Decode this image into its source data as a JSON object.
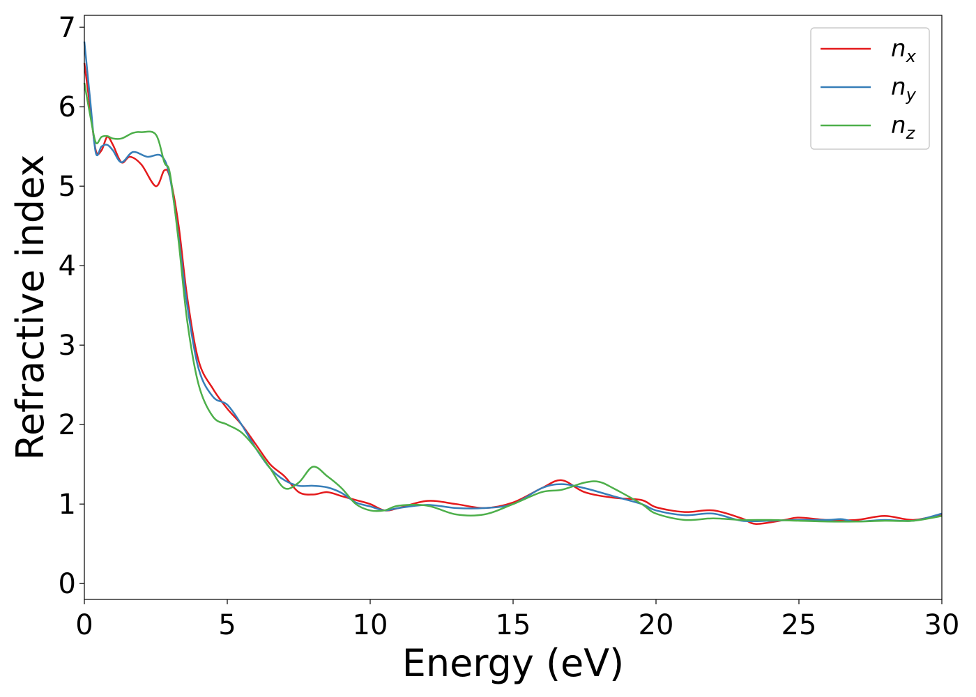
{
  "chart_data": {
    "type": "line",
    "title": "",
    "xlabel": "Energy (eV)",
    "ylabel": "Refractive index",
    "xlim": [
      0,
      30
    ],
    "ylim": [
      -0.2,
      7.15
    ],
    "xticks": [
      0,
      5,
      10,
      15,
      20,
      25,
      30
    ],
    "yticks": [
      0,
      1,
      2,
      3,
      4,
      5,
      6,
      7
    ],
    "grid": false,
    "legend_position": "top-right",
    "series": [
      {
        "name": "n",
        "subscript": "x",
        "color": "#e41a1c",
        "points": [
          [
            0,
            6.55
          ],
          [
            0.2,
            6.0
          ],
          [
            0.4,
            5.45
          ],
          [
            0.6,
            5.45
          ],
          [
            0.8,
            5.62
          ],
          [
            1.0,
            5.52
          ],
          [
            1.3,
            5.3
          ],
          [
            1.6,
            5.37
          ],
          [
            2.0,
            5.27
          ],
          [
            2.5,
            5.0
          ],
          [
            2.8,
            5.2
          ],
          [
            3.0,
            5.1
          ],
          [
            3.3,
            4.5
          ],
          [
            3.6,
            3.6
          ],
          [
            4.0,
            2.8
          ],
          [
            4.5,
            2.45
          ],
          [
            5.0,
            2.2
          ],
          [
            5.5,
            2.0
          ],
          [
            6.0,
            1.75
          ],
          [
            6.5,
            1.5
          ],
          [
            7.0,
            1.35
          ],
          [
            7.5,
            1.15
          ],
          [
            8.0,
            1.12
          ],
          [
            8.5,
            1.15
          ],
          [
            9.0,
            1.1
          ],
          [
            9.5,
            1.05
          ],
          [
            10.0,
            1.0
          ],
          [
            10.5,
            0.92
          ],
          [
            11.0,
            0.95
          ],
          [
            12.0,
            1.04
          ],
          [
            13.0,
            1.0
          ],
          [
            14.0,
            0.95
          ],
          [
            15.0,
            1.02
          ],
          [
            16.0,
            1.2
          ],
          [
            16.7,
            1.3
          ],
          [
            17.5,
            1.15
          ],
          [
            18.5,
            1.08
          ],
          [
            19.5,
            1.05
          ],
          [
            20.0,
            0.96
          ],
          [
            21.0,
            0.9
          ],
          [
            22.0,
            0.92
          ],
          [
            23.0,
            0.82
          ],
          [
            23.5,
            0.75
          ],
          [
            24.5,
            0.8
          ],
          [
            25.0,
            0.83
          ],
          [
            26.0,
            0.8
          ],
          [
            27.0,
            0.8
          ],
          [
            28.0,
            0.85
          ],
          [
            29.0,
            0.8
          ],
          [
            30.0,
            0.87
          ]
        ]
      },
      {
        "name": "n",
        "subscript": "y",
        "color": "#377eb8",
        "points": [
          [
            0,
            6.82
          ],
          [
            0.2,
            6.1
          ],
          [
            0.4,
            5.42
          ],
          [
            0.6,
            5.5
          ],
          [
            0.8,
            5.52
          ],
          [
            1.0,
            5.45
          ],
          [
            1.3,
            5.3
          ],
          [
            1.7,
            5.43
          ],
          [
            2.2,
            5.37
          ],
          [
            2.7,
            5.38
          ],
          [
            3.0,
            5.1
          ],
          [
            3.3,
            4.35
          ],
          [
            3.6,
            3.5
          ],
          [
            4.0,
            2.7
          ],
          [
            4.5,
            2.35
          ],
          [
            5.0,
            2.25
          ],
          [
            5.5,
            2.0
          ],
          [
            6.0,
            1.7
          ],
          [
            6.5,
            1.45
          ],
          [
            7.0,
            1.3
          ],
          [
            7.5,
            1.23
          ],
          [
            8.0,
            1.23
          ],
          [
            8.5,
            1.21
          ],
          [
            9.0,
            1.14
          ],
          [
            9.5,
            1.02
          ],
          [
            10.0,
            0.97
          ],
          [
            10.5,
            0.92
          ],
          [
            11.0,
            0.95
          ],
          [
            12.0,
            0.99
          ],
          [
            13.0,
            0.95
          ],
          [
            14.0,
            0.95
          ],
          [
            15.0,
            1.0
          ],
          [
            16.0,
            1.2
          ],
          [
            16.7,
            1.25
          ],
          [
            17.5,
            1.2
          ],
          [
            18.5,
            1.1
          ],
          [
            19.5,
            1.0
          ],
          [
            20.0,
            0.92
          ],
          [
            21.0,
            0.86
          ],
          [
            22.0,
            0.88
          ],
          [
            23.0,
            0.79
          ],
          [
            24.0,
            0.79
          ],
          [
            25.0,
            0.8
          ],
          [
            26.0,
            0.8
          ],
          [
            26.5,
            0.81
          ],
          [
            27.0,
            0.78
          ],
          [
            28.0,
            0.8
          ],
          [
            29.0,
            0.79
          ],
          [
            30.0,
            0.88
          ]
        ]
      },
      {
        "name": "n",
        "subscript": "z",
        "color": "#4daf4a",
        "points": [
          [
            0,
            6.3
          ],
          [
            0.2,
            5.9
          ],
          [
            0.4,
            5.55
          ],
          [
            0.6,
            5.62
          ],
          [
            0.8,
            5.63
          ],
          [
            1.0,
            5.6
          ],
          [
            1.3,
            5.6
          ],
          [
            1.7,
            5.67
          ],
          [
            2.0,
            5.68
          ],
          [
            2.5,
            5.65
          ],
          [
            2.8,
            5.3
          ],
          [
            3.0,
            5.15
          ],
          [
            3.3,
            4.3
          ],
          [
            3.6,
            3.3
          ],
          [
            4.0,
            2.5
          ],
          [
            4.5,
            2.1
          ],
          [
            5.0,
            2.0
          ],
          [
            5.5,
            1.9
          ],
          [
            6.0,
            1.7
          ],
          [
            6.5,
            1.45
          ],
          [
            7.0,
            1.2
          ],
          [
            7.5,
            1.27
          ],
          [
            8.0,
            1.47
          ],
          [
            8.5,
            1.35
          ],
          [
            9.0,
            1.2
          ],
          [
            9.5,
            1.0
          ],
          [
            10.0,
            0.92
          ],
          [
            10.5,
            0.92
          ],
          [
            11.0,
            0.98
          ],
          [
            12.0,
            0.98
          ],
          [
            13.0,
            0.87
          ],
          [
            14.0,
            0.87
          ],
          [
            15.0,
            1.0
          ],
          [
            16.0,
            1.15
          ],
          [
            16.7,
            1.18
          ],
          [
            17.5,
            1.27
          ],
          [
            18.0,
            1.28
          ],
          [
            18.5,
            1.2
          ],
          [
            19.5,
            1.0
          ],
          [
            20.0,
            0.88
          ],
          [
            21.0,
            0.8
          ],
          [
            22.0,
            0.82
          ],
          [
            23.0,
            0.8
          ],
          [
            24.0,
            0.8
          ],
          [
            25.0,
            0.79
          ],
          [
            26.0,
            0.78
          ],
          [
            27.0,
            0.78
          ],
          [
            28.0,
            0.79
          ],
          [
            29.0,
            0.79
          ],
          [
            30.0,
            0.85
          ]
        ]
      }
    ]
  }
}
